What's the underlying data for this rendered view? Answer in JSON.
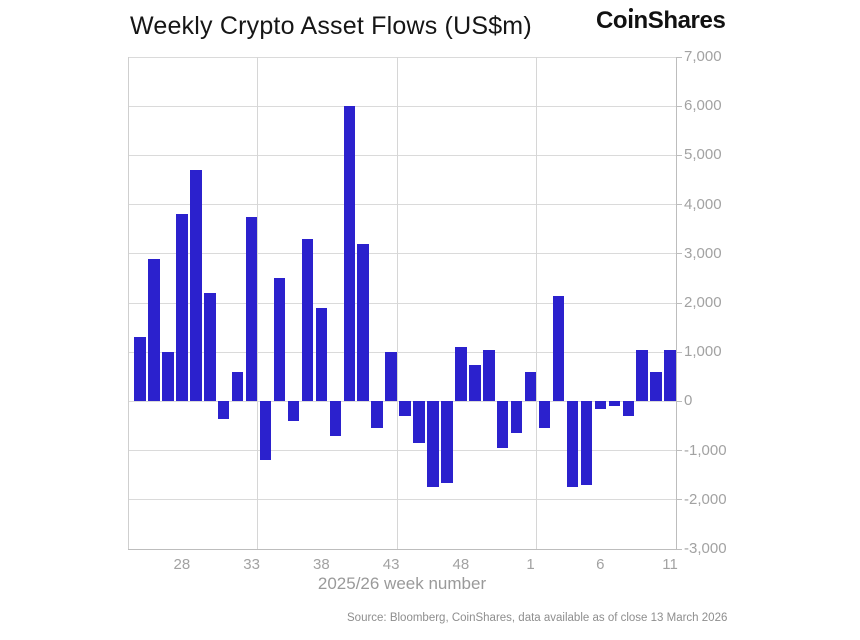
{
  "header": {
    "title": "Weekly Crypto Asset Flows (US$m)",
    "logo": "CoinShares",
    "logo_prefix": "Co",
    "logo_suffix": "nShares"
  },
  "footer": {
    "source": "Source: Bloomberg, CoinShares, data available as of close 13 March 2026"
  },
  "chart_data": {
    "type": "bar",
    "title": "Weekly Crypto Asset Flows (US$m)",
    "xlabel": "2025/26 week number",
    "ylabel": "",
    "ylim": [
      -3000,
      7000
    ],
    "grid": true,
    "legend": "none",
    "bar_color": "#2b21cd",
    "gridline_color": "#dadada",
    "tick_label_color": "#a2a2a2",
    "categories": [
      "25",
      "26",
      "27",
      "28",
      "29",
      "30",
      "31",
      "32",
      "33",
      "34",
      "35",
      "36",
      "37",
      "38",
      "39",
      "40",
      "41",
      "42",
      "43",
      "44",
      "45",
      "46",
      "47",
      "48",
      "49",
      "50",
      "51",
      "52",
      "1",
      "2",
      "3",
      "4",
      "5",
      "6",
      "7",
      "8",
      "9",
      "10",
      "11"
    ],
    "values": [
      1300,
      2900,
      1000,
      3800,
      4700,
      2200,
      -350,
      600,
      3750,
      -1200,
      2500,
      -400,
      3300,
      1900,
      -700,
      6000,
      3200,
      -550,
      1000,
      -300,
      -850,
      -1750,
      -1650,
      1100,
      750,
      1050,
      -950,
      -650,
      600,
      -550,
      2150,
      -1750,
      -1700,
      -150,
      -100,
      -300,
      1050,
      600,
      1050
    ],
    "y_ticks": [
      {
        "value": 7000,
        "label": "7,000"
      },
      {
        "value": 6000,
        "label": "6,000"
      },
      {
        "value": 5000,
        "label": "5,000"
      },
      {
        "value": 4000,
        "label": "4,000"
      },
      {
        "value": 3000,
        "label": "3,000"
      },
      {
        "value": 2000,
        "label": "2,000"
      },
      {
        "value": 1000,
        "label": "1,000"
      },
      {
        "value": 0,
        "label": "0"
      },
      {
        "value": -1000,
        "label": "-1,000"
      },
      {
        "value": -2000,
        "label": "-2,000"
      },
      {
        "value": -3000,
        "label": "-3,000"
      }
    ],
    "x_ticks": [
      {
        "label": "28",
        "index": 3
      },
      {
        "label": "33",
        "index": 8
      },
      {
        "label": "38",
        "index": 13
      },
      {
        "label": "43",
        "index": 18
      },
      {
        "label": "48",
        "index": 23
      },
      {
        "label": "1",
        "index": 28
      },
      {
        "label": "6",
        "index": 33
      },
      {
        "label": "11",
        "index": 38
      }
    ],
    "vgrid_indices": [
      8.45,
      18.45,
      28.45
    ]
  }
}
